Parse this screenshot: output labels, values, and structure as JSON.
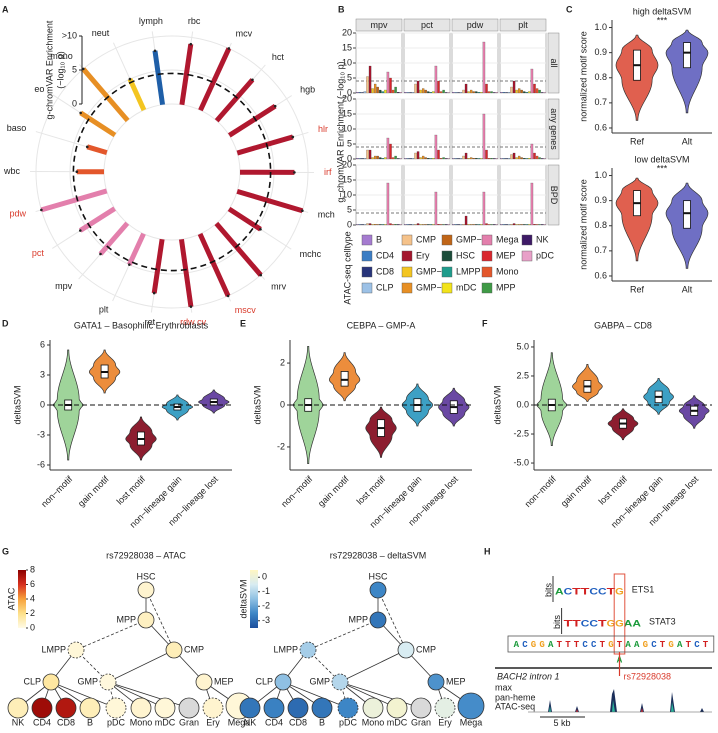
{
  "panel_labels": [
    "A",
    "B",
    "C",
    "D",
    "E",
    "F",
    "G",
    "H"
  ],
  "chart_data": [
    {
      "type": "radial_bar",
      "ylabel": [
        "g-chromVAR Enrichment",
        "(−log₁₀ p)"
      ],
      "categories": [
        "lymph",
        "rbc",
        "mcv",
        "hct",
        "hgb",
        "hlr",
        "irf",
        "mch",
        "mchc",
        "mrv",
        "mscv",
        "rdw cv",
        "ret",
        "plt",
        "mpv",
        "pct",
        "pdw",
        "wbc",
        "baso",
        "eo",
        "mono",
        "neut"
      ],
      "values": [
        8,
        9,
        10,
        8,
        8,
        8.5,
        8,
        10,
        5.5,
        10,
        10,
        10,
        8,
        5,
        6,
        6,
        10,
        4,
        3,
        6,
        10,
        5
      ],
      "colors": [
        "#1f5fa8",
        "#b0182f",
        "#b0182f",
        "#b0182f",
        "#b0182f",
        "#b0182f",
        "#b0182f",
        "#b0182f",
        "#b0182f",
        "#b0182f",
        "#b0182f",
        "#b0182f",
        "#b0182f",
        "#e37fac",
        "#e37fac",
        "#e37fac",
        "#e37fac",
        "#e3572b",
        "#e3572b",
        "#e78f24",
        "#e78f24",
        "#f3c521"
      ],
      "label_colors": [
        "#222222",
        "#222222",
        "#222222",
        "#222222",
        "#222222",
        "#d93a2b",
        "#d93a2b",
        "#222222",
        "#222222",
        "#222222",
        "#d93a2b",
        "#d93a2b",
        "#222222",
        "#222222",
        "#222222",
        "#d93a2b",
        "#d93a2b",
        "#222222",
        "#222222",
        "#222222",
        "#222222",
        "#222222"
      ],
      "ylim": [
        0,
        10
      ],
      "yticks": [
        0,
        5,
        {
          "value": 10,
          "label": ">10"
        }
      ],
      "threshold": 4.5
    },
    {
      "type": "faceted_bar",
      "ylabel": "g−chromVAR Enrichment (−log₁₀ p)",
      "columns": [
        "mpv",
        "pct",
        "pdw",
        "plt"
      ],
      "rows": [
        "all",
        "any genes",
        "BPD"
      ],
      "legend_title": "ATAC-seq celltype",
      "categories": [
        "B",
        "CD4",
        "CD8",
        "CLP",
        "CMP",
        "Ery",
        "GMP−A",
        "GMP−B",
        "GMP−C",
        "HSC",
        "LMPP",
        "mDC",
        "Mega",
        "MEP",
        "Mono",
        "MPP",
        "NK",
        "pDC"
      ],
      "colors": [
        "#a57bd0",
        "#3b7dc4",
        "#28347a",
        "#9cc1e6",
        "#f5c28a",
        "#a3162d",
        "#f3c521",
        "#e78f24",
        "#c06517",
        "#1c4d3a",
        "#1f9c8c",
        "#f2e31b",
        "#e37fac",
        "#d9272e",
        "#e3572b",
        "#3f9a46",
        "#3e1a66",
        "#e8a0c8"
      ],
      "facets": [
        [
          [
            0.3,
            0.3,
            0.2,
            0.5,
            5.5,
            9,
            1.5,
            3,
            2,
            1,
            0.5,
            1,
            7,
            5,
            1,
            2,
            0.3,
            0.3
          ],
          [
            0.3,
            0.2,
            0.2,
            0.3,
            3,
            4,
            1,
            1.5,
            1,
            0.5,
            0.3,
            0.5,
            9,
            4,
            0.5,
            1,
            0.2,
            0.2
          ],
          [
            0.3,
            0.2,
            0.2,
            0.3,
            1,
            3,
            0.5,
            1,
            0.5,
            0.5,
            0.3,
            0.3,
            17,
            3,
            0.5,
            0.5,
            0.2,
            0.3
          ],
          [
            0.3,
            0.3,
            0.2,
            0.3,
            2,
            4,
            1,
            1.5,
            1,
            0.5,
            0.3,
            0.5,
            8,
            3,
            1.5,
            1,
            0.2,
            0.2
          ]
        ],
        [
          [
            0.3,
            0.2,
            0.2,
            0.3,
            3,
            3,
            0.5,
            1,
            1,
            0.5,
            0.3,
            0.5,
            7,
            5,
            0.5,
            1,
            0.2,
            0.2
          ],
          [
            0.2,
            0.2,
            0.2,
            0.3,
            2,
            2.5,
            0.5,
            1,
            0.5,
            0.3,
            0.2,
            0.3,
            8,
            3,
            0.3,
            0.5,
            0.2,
            0.2
          ],
          [
            0.2,
            0.2,
            0.2,
            0.3,
            1,
            2,
            0.3,
            0.5,
            0.3,
            0.3,
            0.2,
            0.2,
            15,
            3,
            0.3,
            0.3,
            0.2,
            0.2
          ],
          [
            0.2,
            0.2,
            0.2,
            0.3,
            1.5,
            2,
            0.5,
            1,
            0.5,
            0.3,
            0.2,
            0.3,
            5,
            2,
            1,
            0.5,
            0.2,
            0.2
          ]
        ],
        [
          [
            0.2,
            0.2,
            0.2,
            0.2,
            0.5,
            0.5,
            0.2,
            0.3,
            0.2,
            0.2,
            0.2,
            0.2,
            14,
            0.5,
            0.2,
            0.3,
            0.2,
            0.2
          ],
          [
            0.2,
            0.2,
            0.2,
            0.2,
            0.3,
            0.5,
            0.2,
            0.2,
            0.2,
            0.2,
            0.2,
            0.2,
            11,
            0.3,
            0.2,
            0.2,
            0.2,
            0.2
          ],
          [
            0.2,
            0.2,
            0.2,
            0.2,
            0.3,
            3,
            0.2,
            0.2,
            0.2,
            0.2,
            0.2,
            0.2,
            11,
            0.5,
            0.2,
            0.2,
            0.2,
            0.2
          ],
          [
            0.2,
            0.2,
            0.2,
            0.2,
            0.3,
            0.5,
            0.2,
            0.2,
            0.2,
            0.2,
            0.2,
            0.2,
            14,
            0.3,
            0.2,
            0.2,
            0.2,
            0.2
          ]
        ]
      ],
      "ylim": [
        0,
        20
      ],
      "yticks": [
        0,
        5,
        10,
        15,
        20
      ],
      "threshold": 4
    },
    {
      "type": "violin",
      "title": "high deltaSVM",
      "ylabel": "normalized motif score",
      "annotation": "***",
      "categories": [
        "Ref",
        "Alt"
      ],
      "colors": [
        "#e0604f",
        "#6f6fc4"
      ],
      "stats": [
        {
          "min": 0.63,
          "q1": 0.79,
          "median": 0.85,
          "q3": 0.91,
          "max": 0.97
        },
        {
          "min": 0.66,
          "q1": 0.84,
          "median": 0.9,
          "q3": 0.94,
          "max": 0.99
        }
      ],
      "ylim": [
        0.58,
        1.03
      ],
      "yticks": [
        0.6,
        0.7,
        0.8,
        0.9,
        {
          "value": 1,
          "label": "1.0"
        }
      ]
    },
    {
      "type": "violin",
      "title": "low deltaSVM",
      "ylabel": "normalized motif score",
      "annotation": "***",
      "categories": [
        "Ref",
        "Alt"
      ],
      "colors": [
        "#e0604f",
        "#6f6fc4"
      ],
      "stats": [
        {
          "min": 0.66,
          "q1": 0.84,
          "median": 0.89,
          "q3": 0.94,
          "max": 0.99
        },
        {
          "min": 0.63,
          "q1": 0.79,
          "median": 0.85,
          "q3": 0.9,
          "max": 0.97
        }
      ],
      "ylim": [
        0.58,
        1.03
      ],
      "yticks": [
        0.6,
        0.7,
        0.8,
        0.9,
        {
          "value": 1,
          "label": "1.0"
        }
      ]
    },
    {
      "type": "violin",
      "title": "GATA1 – Basophilic Erythroblasts",
      "ylabel": "deltaSVM",
      "categories": [
        "non−motif",
        "gain motif",
        "lost motif",
        "non−lineage gain",
        "non−lineage lost"
      ],
      "colors": [
        "#9fd49a",
        "#ec8d3c",
        "#8c1d2f",
        "#3da0c4",
        "#6a48a3"
      ],
      "stats": [
        {
          "min": -5.5,
          "q1": -0.5,
          "median": 0,
          "q3": 0.5,
          "max": 5.5
        },
        {
          "min": 1.2,
          "q1": 2.7,
          "median": 3.3,
          "q3": 4,
          "max": 5.5
        },
        {
          "min": -5.5,
          "q1": -4,
          "median": -3.4,
          "q3": -2.7,
          "max": -1.2
        },
        {
          "min": -1.5,
          "q1": -0.5,
          "median": -0.2,
          "q3": 0.1,
          "max": 1
        },
        {
          "min": -0.8,
          "q1": 0,
          "median": 0.3,
          "q3": 0.6,
          "max": 1.5
        }
      ],
      "hline": 0,
      "ylim": [
        -6.5,
        6.5
      ],
      "yticks": [
        -6,
        -3,
        0,
        3,
        6
      ]
    },
    {
      "type": "violin",
      "title": "CEBPA – GMP-A",
      "ylabel": "deltaSVM",
      "categories": [
        "non−motif",
        "gain motif",
        "lost motif",
        "non−lineage gain",
        "non−lineage lost"
      ],
      "colors": [
        "#9fd49a",
        "#ec8d3c",
        "#8c1d2f",
        "#3da0c4",
        "#6a48a3"
      ],
      "stats": [
        {
          "min": -2.8,
          "q1": -0.3,
          "median": 0,
          "q3": 0.3,
          "max": 2.8
        },
        {
          "min": 0.2,
          "q1": 0.9,
          "median": 1.2,
          "q3": 1.6,
          "max": 2.5
        },
        {
          "min": -2.5,
          "q1": -1.5,
          "median": -1.1,
          "q3": -0.7,
          "max": -0.1
        },
        {
          "min": -1,
          "q1": -0.3,
          "median": 0,
          "q3": 0.3,
          "max": 1
        },
        {
          "min": -1,
          "q1": -0.4,
          "median": -0.1,
          "q3": 0.2,
          "max": 0.8
        }
      ],
      "hline": 0,
      "ylim": [
        -3.1,
        3.1
      ],
      "yticks": [
        -2,
        0,
        2
      ]
    },
    {
      "type": "violin",
      "title": "GABPA – CD8",
      "ylabel": "deltaSVM",
      "categories": [
        "non−motif",
        "gain motif",
        "lost motif",
        "non−lineage gain",
        "non−lineage lost"
      ],
      "colors": [
        "#9fd49a",
        "#ec8d3c",
        "#8c1d2f",
        "#3da0c4",
        "#6a48a3"
      ],
      "stats": [
        {
          "min": -3.5,
          "q1": -0.5,
          "median": 0,
          "q3": 0.5,
          "max": 4.5
        },
        {
          "min": 0.3,
          "q1": 1.1,
          "median": 1.6,
          "q3": 2.1,
          "max": 3.5
        },
        {
          "min": -3,
          "q1": -2,
          "median": -1.6,
          "q3": -1.2,
          "max": -0.3
        },
        {
          "min": -0.8,
          "q1": 0.2,
          "median": 0.7,
          "q3": 1.2,
          "max": 2.3
        },
        {
          "min": -2,
          "q1": -0.9,
          "median": -0.5,
          "q3": -0.1,
          "max": 0.8
        }
      ],
      "hline": 0,
      "ylim": [
        -5.6,
        5.6
      ],
      "yticks": [
        {
          "value": -5,
          "label": "-5.0"
        },
        -2.5,
        {
          "value": 0,
          "label": "0.0"
        },
        2.5,
        {
          "value": 5,
          "label": "5.0"
        }
      ]
    }
  ],
  "diagrams": {
    "G": [
      {
        "title": "rs72928038 – ATAC",
        "colorbar_label": "ATAC",
        "clim": [
          0,
          8
        ],
        "colorbar_ticks": [
          0,
          2,
          4,
          6,
          8
        ],
        "colors": [
          "#fffbe6",
          "#fde08a",
          "#f7a13b",
          "#d7301f",
          "#8b0000"
        ],
        "nodes": [
          {
            "label": "HSC",
            "value": 0.5
          },
          {
            "label": "MPP",
            "value": 0.8
          },
          {
            "label": "LMPP",
            "value": 0.3
          },
          {
            "label": "CMP",
            "value": 1
          },
          {
            "label": "CLP",
            "value": 1.5
          },
          {
            "label": "GMP",
            "value": 0.2
          },
          {
            "label": "MEP",
            "value": 0.5
          },
          {
            "label": "NK",
            "value": 1
          },
          {
            "label": "CD4",
            "value": 7.5
          },
          {
            "label": "CD8",
            "value": 7
          },
          {
            "label": "B",
            "value": 1
          },
          {
            "label": "pDC",
            "value": 0.3
          },
          {
            "label": "Mono",
            "value": 0.5
          },
          {
            "label": "mDC",
            "value": 0.3
          },
          {
            "label": "Gran",
            "value": null
          },
          {
            "label": "Ery",
            "value": 0.5
          },
          {
            "label": "Mega",
            "value": 0.3
          }
        ]
      },
      {
        "title": "rs72928038 – deltaSVM",
        "colorbar_label": "deltaSVM",
        "clim": [
          -3.5,
          0.5
        ],
        "colorbar_ticks": [
          0,
          -1,
          -2,
          -3
        ],
        "colors": [
          "#1c4f9c",
          "#3d86c6",
          "#8fc0e3",
          "#d8ecf2",
          "#fff6c2"
        ],
        "nodes": [
          {
            "label": "HSC",
            "value": -2.5
          },
          {
            "label": "MPP",
            "value": -2.8
          },
          {
            "label": "LMPP",
            "value": -1.2
          },
          {
            "label": "CMP",
            "value": -0.5
          },
          {
            "label": "CLP",
            "value": -1.5
          },
          {
            "label": "GMP",
            "value": -1
          },
          {
            "label": "MEP",
            "value": -2.3
          },
          {
            "label": "NK",
            "value": -2.8
          },
          {
            "label": "CD4",
            "value": -2.6
          },
          {
            "label": "CD8",
            "value": -3
          },
          {
            "label": "B",
            "value": -2.8
          },
          {
            "label": "pDC",
            "value": -2.5
          },
          {
            "label": "Mono",
            "value": 0
          },
          {
            "label": "mDC",
            "value": 0.2
          },
          {
            "label": "Gran",
            "value": null
          },
          {
            "label": "Ery",
            "value": -0.2
          },
          {
            "label": "Mega",
            "value": -2.4
          }
        ]
      }
    ],
    "H": {
      "motifs": [
        {
          "name": "ETS1",
          "logo": "ACTTCCTG",
          "ylabel": "bits"
        },
        {
          "name": "STAT3",
          "logo": "TTCCTGGAA",
          "ylabel": "bits"
        }
      ],
      "sequence": "ACGGATTTCCTGTAAGCTGATCT",
      "alt": "A",
      "gene": "BACH2 intron 1",
      "snp": "rs72928038",
      "track_max": "max",
      "track_label": [
        "pan-heme",
        "ATAC-seq"
      ],
      "scale_label": "5 kb"
    }
  }
}
